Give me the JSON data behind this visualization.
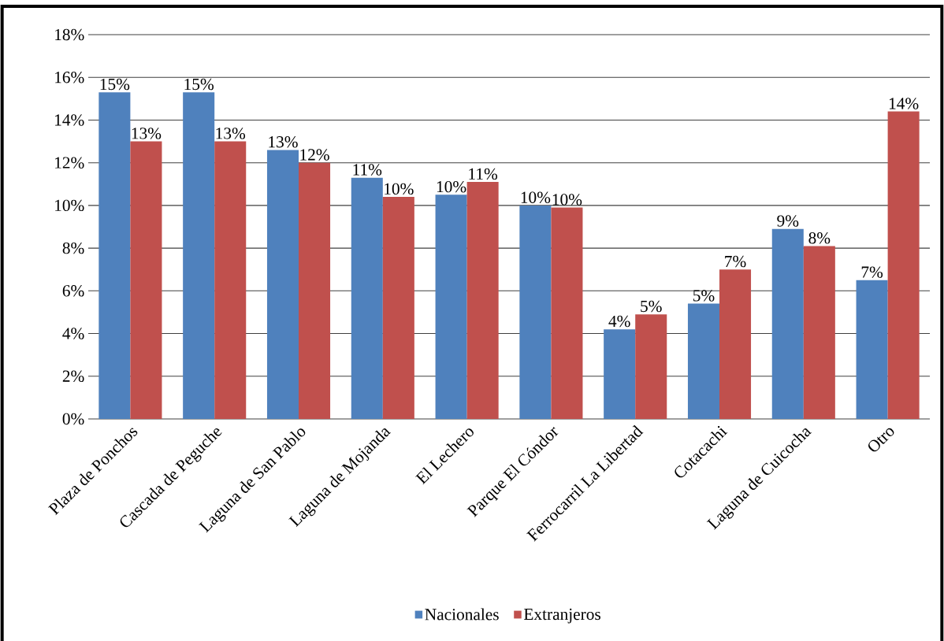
{
  "chart_data": {
    "type": "bar",
    "categories": [
      "Plaza de Ponchos",
      "Cascada de Peguche",
      "Laguna de San Pablo",
      "Laguna de Mojanda",
      "El Lechero",
      "Parque El Cóndor",
      "Ferrocarril La Libertad",
      "Cotacachi",
      "Laguna de Cuicocha",
      "Otro"
    ],
    "series": [
      {
        "name": "Nacionales",
        "color": "#4f81bd",
        "values": [
          15.3,
          15.3,
          12.6,
          11.3,
          10.5,
          10.0,
          4.2,
          5.4,
          8.9,
          6.5
        ],
        "value_labels": [
          "15%",
          "15%",
          "13%",
          "11%",
          "10%",
          "10%",
          "4%",
          "5%",
          "9%",
          "7%"
        ]
      },
      {
        "name": "Extranjeros",
        "color": "#c0504d",
        "values": [
          13.0,
          13.0,
          12.0,
          10.4,
          11.1,
          9.9,
          4.9,
          7.0,
          8.1,
          14.4
        ],
        "value_labels": [
          "13%",
          "13%",
          "12%",
          "10%",
          "11%",
          "10%",
          "5%",
          "7%",
          "8%",
          "14%"
        ]
      }
    ],
    "ylim": [
      0,
      18
    ],
    "yticks": [
      {
        "value": 0,
        "label": "0%"
      },
      {
        "value": 2,
        "label": "2%"
      },
      {
        "value": 4,
        "label": "4%"
      },
      {
        "value": 6,
        "label": "6%"
      },
      {
        "value": 8,
        "label": "8%"
      },
      {
        "value": 10,
        "label": "10%"
      },
      {
        "value": 12,
        "label": "12%"
      },
      {
        "value": 14,
        "label": "14%"
      },
      {
        "value": 16,
        "label": "16%"
      },
      {
        "value": 18,
        "label": "18%"
      }
    ],
    "grid": "y",
    "legend": "bottom"
  }
}
